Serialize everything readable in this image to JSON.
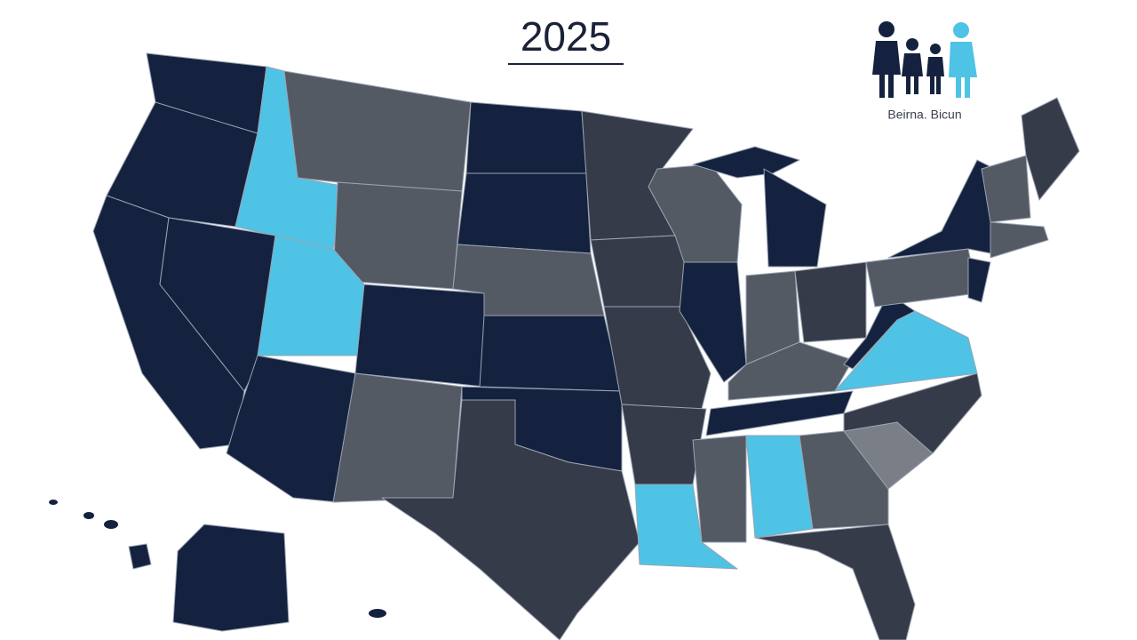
{
  "title": "2025",
  "logo": {
    "caption": "Beirna. Bicun"
  }
}
